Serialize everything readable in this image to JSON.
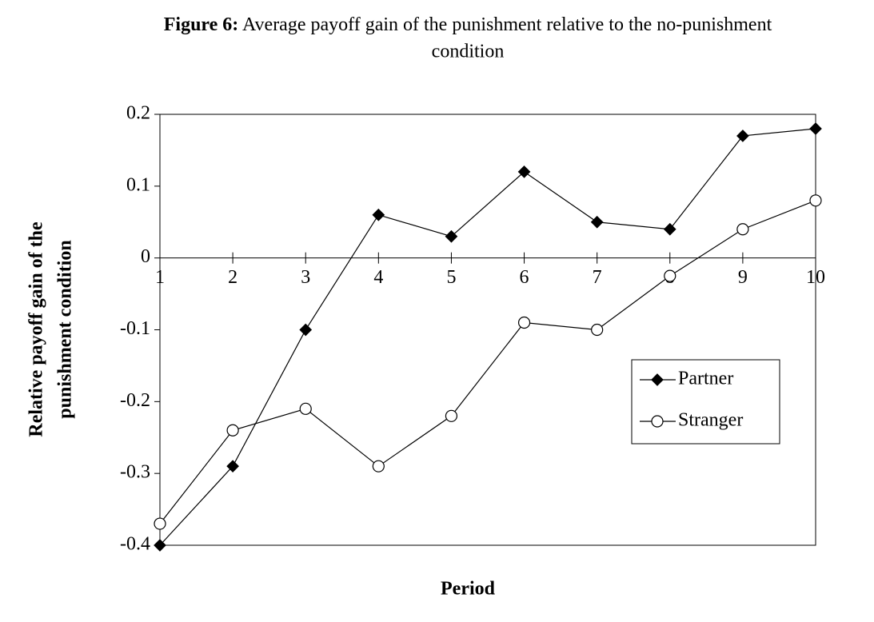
{
  "chart_data": {
    "type": "line",
    "title_label": "Figure 6:",
    "title": "Average payoff gain of the punishment relative to the no-punishment condition",
    "ylabel": [
      "Relative payoff gain of the",
      "punishment condition"
    ],
    "xlabel": "Period",
    "x": [
      1,
      2,
      3,
      4,
      5,
      6,
      7,
      8,
      9,
      10
    ],
    "xlim": [
      1,
      10
    ],
    "xticks": [
      1,
      2,
      3,
      4,
      5,
      6,
      7,
      8,
      9,
      10
    ],
    "ylim": [
      -0.4,
      0.2
    ],
    "yticks": [
      -0.4,
      -0.3,
      -0.2,
      -0.1,
      0,
      0.1,
      0.2
    ],
    "grid": false,
    "legend": "right",
    "series": [
      {
        "name": "Partner",
        "color": "#000000",
        "marker": "diamond",
        "values": [
          -0.4,
          -0.29,
          -0.1,
          0.06,
          0.03,
          0.12,
          0.05,
          0.04,
          0.17,
          0.18
        ]
      },
      {
        "name": "Stranger",
        "color": "#000000",
        "marker": "circle",
        "values": [
          -0.37,
          -0.24,
          -0.21,
          -0.29,
          -0.22,
          -0.09,
          -0.1,
          -0.025,
          0.04,
          0.08
        ]
      }
    ]
  }
}
